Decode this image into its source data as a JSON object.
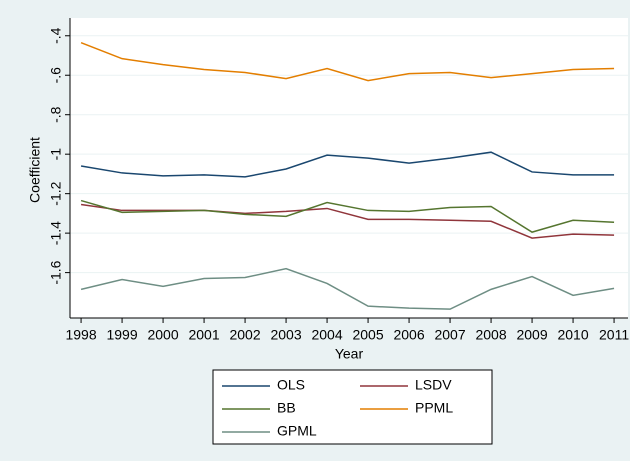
{
  "chart_data": {
    "type": "line",
    "x_label": "Year",
    "y_label": "Coefficient",
    "x": [
      1998,
      1999,
      2000,
      2001,
      2002,
      2003,
      2004,
      2005,
      2006,
      2007,
      2008,
      2009,
      2010,
      2011
    ],
    "xlim": [
      1997.73,
      2011.34
    ],
    "xticks": [
      1998,
      1999,
      2000,
      2001,
      2002,
      2003,
      2004,
      2005,
      2006,
      2007,
      2008,
      2009,
      2010,
      2011
    ],
    "ylim": [
      -1.83,
      -0.31
    ],
    "yticks": [
      {
        "value": -0.4,
        "label": "-.4"
      },
      {
        "value": -0.6,
        "label": "-.6"
      },
      {
        "value": -0.8,
        "label": "-.8"
      },
      -1,
      -1.2,
      -1.4,
      -1.6
    ],
    "grid": true,
    "legend": "bottom",
    "series": [
      {
        "name": "OLS",
        "color": "#1a476f",
        "values": [
          -1.06,
          -1.095,
          -1.11,
          -1.105,
          -1.115,
          -1.075,
          -1.005,
          -1.02,
          -1.045,
          -1.02,
          -0.99,
          -1.09,
          -1.105,
          -1.105
        ]
      },
      {
        "name": "LSDV",
        "color": "#90353b",
        "values": [
          -1.255,
          -1.285,
          -1.285,
          -1.285,
          -1.3,
          -1.29,
          -1.275,
          -1.33,
          -1.33,
          -1.335,
          -1.34,
          -1.425,
          -1.405,
          -1.41
        ]
      },
      {
        "name": "BB",
        "color": "#55752f",
        "values": [
          -1.235,
          -1.295,
          -1.29,
          -1.285,
          -1.305,
          -1.315,
          -1.245,
          -1.285,
          -1.29,
          -1.27,
          -1.265,
          -1.395,
          -1.335,
          -1.345
        ]
      },
      {
        "name": "PPML",
        "color": "#e37e00",
        "values": [
          -0.435,
          -0.516,
          -0.546,
          -0.571,
          -0.586,
          -0.617,
          -0.566,
          -0.627,
          -0.592,
          -0.586,
          -0.612,
          -0.592,
          -0.571,
          -0.566
        ]
      },
      {
        "name": "GPML",
        "color": "#6e8e84",
        "values": [
          -1.685,
          -1.635,
          -1.67,
          -1.63,
          -1.625,
          -1.58,
          -1.655,
          -1.77,
          -1.78,
          -1.785,
          -1.685,
          -1.62,
          -1.715,
          -1.68
        ]
      }
    ]
  }
}
